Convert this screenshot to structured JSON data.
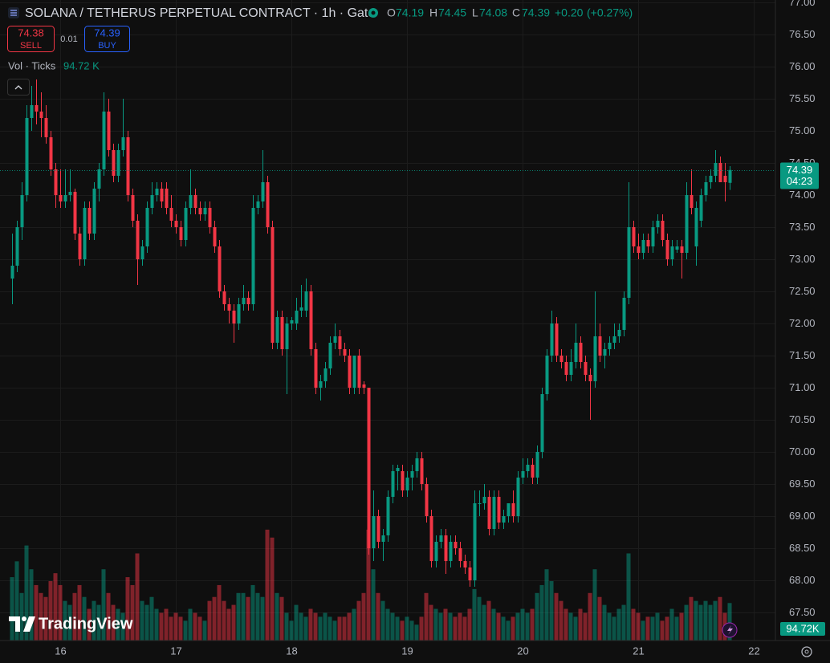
{
  "chart_data": {
    "type": "candlestick",
    "title": "SOLANA / TETHERUS PERPETUAL CONTRACT · 1h · Gate",
    "legend_keys": [
      "O",
      "H",
      "L",
      "C"
    ],
    "change_label": "+0.20",
    "change_pct_label": "(+0.27%)",
    "sell_price": 74.38,
    "sell_label": "SELL",
    "spread": 0.01,
    "buy_price": 74.39,
    "buy_label": "BUY",
    "volume_title": "Vol · Ticks",
    "volume_label": "94.72 K",
    "volume_axis_label": "94.72K",
    "countdown": "04:23",
    "watermark": "TradingView",
    "up_color": "#089981",
    "down_color": "#f23645",
    "grid": true,
    "x": [
      0,
      1,
      2,
      3,
      4,
      5,
      6,
      7,
      8,
      9,
      10,
      11,
      12,
      13,
      14,
      15,
      16,
      17,
      18,
      19,
      20,
      21,
      22,
      23,
      24,
      25,
      26,
      27,
      28,
      29,
      30,
      31,
      32,
      33,
      34,
      35,
      36,
      37,
      38,
      39,
      40,
      41,
      42,
      43,
      44,
      45,
      46,
      47,
      48,
      49,
      50,
      51,
      52,
      53,
      54,
      55,
      56,
      57,
      58,
      59,
      60,
      61,
      62,
      63,
      64,
      65,
      66,
      67,
      68,
      69,
      70,
      71,
      72,
      73,
      74,
      75,
      76,
      77,
      78,
      79,
      80,
      81,
      82,
      83,
      84,
      85,
      86,
      87,
      88,
      89,
      90,
      91,
      92,
      93,
      94,
      95,
      96,
      97,
      98,
      99,
      100,
      101,
      102,
      103,
      104,
      105,
      106,
      107,
      108,
      109,
      110,
      111,
      112,
      113,
      114,
      115,
      116,
      117,
      118,
      119,
      120,
      121,
      122,
      123,
      124,
      125,
      126,
      127,
      128,
      129,
      130,
      131,
      132,
      133,
      134,
      135,
      136,
      137,
      138,
      139,
      140,
      141,
      142,
      143,
      144,
      145,
      146,
      147,
      148,
      149
    ],
    "open": [
      72.7,
      72.9,
      73.5,
      74.0,
      75.2,
      75.4,
      75.3,
      75.2,
      74.9,
      74.4,
      74.0,
      73.9,
      74.0,
      74.05,
      73.4,
      73.0,
      73.8,
      73.4,
      74.1,
      74.4,
      75.3,
      74.7,
      74.3,
      74.7,
      74.9,
      74.0,
      73.6,
      73.0,
      73.2,
      73.8,
      74.0,
      74.1,
      74.1,
      73.8,
      73.6,
      73.5,
      73.3,
      73.8,
      74.0,
      73.8,
      73.7,
      73.8,
      73.5,
      73.2,
      72.5,
      72.3,
      72.2,
      72.0,
      72.3,
      72.4,
      72.3,
      73.8,
      73.9,
      74.2,
      73.5,
      71.7,
      72.1,
      71.6,
      72.0,
      72.0,
      72.2,
      72.2,
      72.5,
      71.6,
      71.0,
      71.1,
      71.3,
      71.7,
      71.8,
      71.6,
      71.5,
      71.0,
      71.5,
      71.05,
      71.0,
      68.5,
      69.0,
      68.6,
      68.7,
      69.3,
      69.7,
      69.7,
      69.4,
      69.6,
      69.7,
      69.9,
      69.5,
      69.0,
      68.3,
      68.6,
      68.7,
      68.3,
      68.6,
      68.5,
      68.3,
      68.2,
      68.0,
      69.2,
      69.2,
      69.3,
      68.8,
      69.3,
      68.9,
      69.0,
      69.2,
      69.0,
      69.6,
      69.7,
      69.8,
      69.6,
      70.0,
      70.9,
      71.5,
      72.0,
      71.5,
      71.4,
      71.2,
      71.4,
      71.7,
      71.4,
      71.2,
      71.1,
      71.8,
      71.5,
      71.6,
      71.7,
      71.8,
      71.9,
      72.4,
      73.5,
      73.2,
      73.1,
      73.3,
      73.2,
      73.5,
      73.6,
      73.3,
      73.0,
      73.15,
      73.2,
      73.1,
      74.0,
      73.2,
      73.6,
      74.0,
      74.2,
      74.3,
      74.5,
      74.3,
      74.19
    ],
    "high": [
      73.4,
      73.6,
      74.2,
      75.4,
      75.7,
      75.8,
      75.6,
      75.4,
      75.0,
      74.5,
      74.4,
      74.4,
      74.4,
      74.1,
      73.5,
      73.9,
      73.9,
      74.2,
      74.5,
      75.6,
      75.5,
      74.8,
      74.8,
      75.5,
      75.0,
      74.1,
      73.7,
      73.3,
      73.9,
      74.2,
      74.2,
      74.2,
      74.2,
      74.0,
      73.7,
      73.6,
      73.9,
      74.4,
      74.1,
      73.9,
      73.9,
      73.9,
      73.6,
      73.3,
      72.6,
      72.4,
      72.3,
      72.4,
      72.6,
      72.5,
      74.0,
      74.0,
      74.7,
      74.3,
      73.6,
      72.2,
      72.2,
      72.1,
      72.1,
      72.4,
      72.6,
      72.7,
      72.6,
      71.7,
      71.2,
      71.4,
      71.8,
      72.0,
      71.9,
      71.7,
      71.6,
      71.5,
      71.6,
      71.1,
      71.0,
      69.4,
      69.1,
      68.8,
      69.4,
      69.8,
      69.8,
      69.8,
      69.7,
      69.8,
      70.0,
      70.0,
      69.6,
      69.1,
      68.7,
      68.8,
      68.8,
      68.7,
      68.7,
      68.6,
      68.4,
      68.3,
      69.4,
      69.4,
      69.5,
      69.4,
      69.4,
      69.4,
      69.1,
      69.2,
      69.4,
      69.7,
      69.9,
      69.9,
      69.9,
      70.1,
      71.0,
      71.6,
      72.2,
      72.1,
      71.6,
      71.5,
      71.6,
      72.0,
      71.8,
      71.5,
      71.3,
      72.5,
      72.0,
      71.7,
      71.8,
      72.0,
      72.0,
      72.5,
      74.2,
      73.6,
      73.4,
      73.4,
      73.4,
      73.6,
      73.7,
      73.7,
      73.4,
      73.3,
      73.3,
      73.3,
      74.2,
      74.4,
      73.9,
      74.1,
      74.3,
      74.4,
      74.7,
      74.6,
      74.5,
      74.45
    ],
    "low": [
      72.3,
      72.8,
      73.3,
      73.9,
      75.0,
      75.1,
      74.9,
      74.8,
      74.3,
      73.8,
      73.8,
      73.8,
      73.9,
      73.3,
      72.9,
      72.9,
      73.3,
      73.3,
      73.9,
      74.3,
      74.6,
      74.2,
      74.2,
      74.6,
      73.9,
      73.5,
      72.6,
      72.9,
      73.1,
      73.7,
      73.9,
      73.8,
      73.7,
      73.5,
      73.4,
      73.2,
      73.2,
      73.7,
      73.7,
      73.6,
      73.6,
      73.4,
      73.1,
      72.4,
      72.2,
      72.0,
      71.7,
      71.9,
      72.2,
      72.2,
      72.2,
      73.7,
      73.8,
      73.4,
      71.6,
      71.6,
      71.5,
      70.9,
      71.9,
      71.9,
      72.1,
      72.1,
      71.5,
      70.9,
      70.8,
      71.0,
      71.2,
      71.6,
      71.5,
      71.4,
      70.9,
      70.9,
      70.9,
      70.9,
      68.4,
      68.3,
      68.5,
      68.3,
      68.6,
      69.2,
      69.4,
      69.3,
      69.3,
      69.4,
      69.6,
      69.4,
      68.9,
      68.2,
      68.2,
      68.5,
      68.1,
      68.2,
      68.4,
      68.2,
      68.1,
      67.9,
      67.9,
      69.0,
      69.1,
      68.7,
      68.7,
      68.8,
      68.8,
      68.9,
      68.9,
      68.9,
      69.5,
      69.6,
      69.5,
      69.5,
      69.9,
      70.8,
      71.4,
      71.4,
      71.3,
      71.1,
      71.1,
      71.3,
      71.3,
      71.1,
      70.5,
      71.0,
      71.4,
      71.3,
      71.5,
      71.6,
      71.7,
      71.8,
      72.3,
      73.1,
      73.0,
      73.0,
      73.1,
      73.1,
      73.4,
      73.2,
      72.9,
      72.9,
      73.1,
      72.7,
      73.0,
      73.7,
      72.9,
      73.5,
      73.9,
      74.1,
      74.2,
      74.2,
      73.9,
      74.08
    ],
    "close": [
      72.9,
      73.5,
      74.0,
      75.2,
      75.4,
      75.3,
      75.2,
      74.9,
      74.4,
      74.0,
      73.9,
      74.0,
      74.05,
      73.4,
      73.0,
      73.8,
      73.4,
      74.1,
      74.4,
      75.3,
      74.7,
      74.3,
      74.7,
      74.9,
      74.0,
      73.6,
      73.0,
      73.2,
      73.8,
      74.0,
      74.1,
      73.9,
      73.8,
      73.6,
      73.5,
      73.3,
      73.8,
      74.0,
      73.8,
      73.7,
      73.8,
      73.5,
      73.2,
      72.5,
      72.3,
      72.2,
      72.0,
      72.3,
      72.4,
      72.3,
      73.8,
      73.9,
      74.2,
      73.5,
      71.7,
      72.1,
      71.6,
      72.0,
      72.05,
      72.2,
      72.25,
      72.5,
      71.6,
      71.0,
      71.1,
      71.3,
      71.7,
      71.8,
      71.6,
      71.5,
      71.0,
      71.5,
      71.0,
      71.0,
      68.5,
      69.0,
      68.6,
      68.7,
      69.3,
      69.7,
      69.75,
      69.4,
      69.6,
      69.7,
      69.9,
      69.5,
      69.0,
      68.3,
      68.6,
      68.7,
      68.3,
      68.6,
      68.5,
      68.3,
      68.2,
      68.0,
      69.2,
      69.2,
      69.3,
      68.8,
      69.3,
      68.9,
      69.0,
      69.2,
      69.0,
      69.6,
      69.7,
      69.8,
      69.6,
      70.0,
      70.9,
      71.5,
      72.0,
      71.5,
      71.4,
      71.2,
      71.4,
      71.7,
      71.4,
      71.2,
      71.1,
      71.8,
      71.5,
      71.6,
      71.7,
      71.8,
      71.9,
      72.4,
      73.5,
      73.2,
      73.1,
      73.3,
      73.2,
      73.5,
      73.6,
      73.3,
      73.0,
      73.2,
      73.2,
      73.1,
      74.0,
      73.8,
      73.8,
      74.0,
      74.2,
      74.3,
      74.5,
      74.2,
      74.2,
      74.39
    ],
    "volume": [
      160,
      200,
      120,
      240,
      180,
      140,
      120,
      110,
      150,
      170,
      140,
      100,
      90,
      120,
      140,
      110,
      80,
      100,
      90,
      180,
      120,
      90,
      80,
      70,
      160,
      140,
      220,
      100,
      90,
      110,
      80,
      70,
      80,
      60,
      70,
      60,
      50,
      80,
      70,
      60,
      50,
      100,
      110,
      140,
      100,
      80,
      90,
      120,
      120,
      110,
      140,
      120,
      110,
      280,
      260,
      120,
      110,
      70,
      50,
      90,
      70,
      60,
      80,
      70,
      60,
      70,
      60,
      50,
      60,
      60,
      70,
      80,
      100,
      120,
      280,
      180,
      120,
      100,
      80,
      70,
      60,
      50,
      60,
      50,
      40,
      60,
      120,
      90,
      80,
      70,
      80,
      70,
      60,
      70,
      60,
      80,
      130,
      110,
      90,
      100,
      80,
      70,
      60,
      50,
      60,
      70,
      80,
      70,
      80,
      120,
      140,
      180,
      150,
      120,
      100,
      80,
      70,
      60,
      80,
      70,
      120,
      180,
      110,
      90,
      70,
      60,
      80,
      90,
      220,
      80,
      70,
      50,
      60,
      60,
      70,
      50,
      60,
      80,
      60,
      70,
      90,
      110,
      100,
      90,
      100,
      90,
      100,
      110,
      70,
      94.72
    ],
    "xlim": [
      -2.5,
      158.5
    ],
    "xticks": [
      {
        "value": 10,
        "label": "16"
      },
      {
        "value": 34,
        "label": "17"
      },
      {
        "value": 58,
        "label": "18"
      },
      {
        "value": 82,
        "label": "19"
      },
      {
        "value": 106,
        "label": "20"
      },
      {
        "value": 130,
        "label": "21"
      },
      {
        "value": 154,
        "label": "22"
      }
    ],
    "ylim": [
      67.0625,
      77.0375
    ],
    "yticks": [
      {
        "value": 67.5,
        "label": "67.50"
      },
      {
        "value": 68,
        "label": "68.00"
      },
      {
        "value": 68.5,
        "label": "68.50"
      },
      {
        "value": 69,
        "label": "69.00"
      },
      {
        "value": 69.5,
        "label": "69.50"
      },
      {
        "value": 70,
        "label": "70.00"
      },
      {
        "value": 70.5,
        "label": "70.50"
      },
      {
        "value": 71,
        "label": "71.00"
      },
      {
        "value": 71.5,
        "label": "71.50"
      },
      {
        "value": 72,
        "label": "72.00"
      },
      {
        "value": 72.5,
        "label": "72.50"
      },
      {
        "value": 73,
        "label": "73.00"
      },
      {
        "value": 73.5,
        "label": "73.50"
      },
      {
        "value": 74,
        "label": "74.00"
      },
      {
        "value": 74.5,
        "label": "74.50"
      },
      {
        "value": 75,
        "label": "75.00"
      },
      {
        "value": 75.5,
        "label": "75.50"
      },
      {
        "value": 76,
        "label": "76.00"
      },
      {
        "value": 76.5,
        "label": "76.50"
      },
      {
        "value": 77,
        "label": "77.00"
      }
    ],
    "vlim": [
      0,
      300
    ]
  }
}
